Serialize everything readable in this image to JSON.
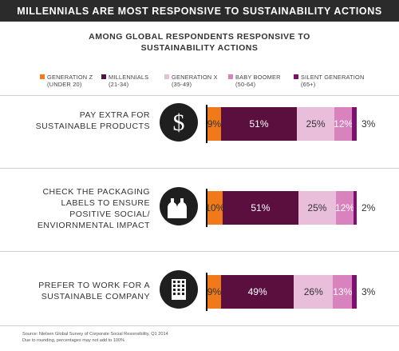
{
  "header": {
    "banner": "MILLENNIALS ARE MOST RESPONSIVE TO SUSTAINABILITY ACTIONS",
    "subtitle_line1": "AMONG GLOBAL RESPONDENTS RESPONSIVE TO",
    "subtitle_line2": "SUSTAINABILITY ACTIONS"
  },
  "legend": [
    {
      "name": "GENERATION Z",
      "range": "(UNDER 20)",
      "color": "#f07a1a"
    },
    {
      "name": "MILLENNIALS",
      "range": "(21-34)",
      "color": "#5b0f3f"
    },
    {
      "name": "GENERATION X",
      "range": "(35-49)",
      "color": "#e9bedb"
    },
    {
      "name": "BABY BOOMER",
      "range": "(50-64)",
      "color": "#d883be"
    },
    {
      "name": "SILENT GENERATION",
      "range": "(65+)",
      "color": "#7d0f6e"
    }
  ],
  "rows": [
    {
      "label_lines": [
        "PAY EXTRA FOR",
        "SUSTAINABLE PRODUCTS"
      ],
      "icon": "dollar-icon"
    },
    {
      "label_lines": [
        "CHECK THE PACKAGING",
        "LABELS TO ENSURE",
        "POSITIVE SOCIAL/",
        "ENVIORNMENTAL IMPACT"
      ],
      "icon": "bottles-icon"
    },
    {
      "label_lines": [
        "PREFER TO WORK FOR A",
        "SUSTAINABLE COMPANY"
      ],
      "icon": "building-icon"
    }
  ],
  "chart_data": {
    "type": "bar",
    "orientation": "horizontal",
    "stacked": true,
    "categories": [
      "PAY EXTRA FOR SUSTAINABLE PRODUCTS",
      "CHECK THE PACKAGING LABELS TO ENSURE POSITIVE SOCIAL/ ENVIORNMENTAL IMPACT",
      "PREFER TO WORK FOR A SUSTAINABLE COMPANY"
    ],
    "series": [
      {
        "name": "GENERATION Z (UNDER 20)",
        "values": [
          9,
          10,
          9
        ],
        "color": "#f07a1a"
      },
      {
        "name": "MILLENNIALS (21-34)",
        "values": [
          51,
          51,
          49
        ],
        "color": "#5b0f3f"
      },
      {
        "name": "GENERATION X (35-49)",
        "values": [
          25,
          25,
          26
        ],
        "color": "#e9bedb"
      },
      {
        "name": "BABY BOOMER (50-64)",
        "values": [
          12,
          12,
          13
        ],
        "color": "#d883be"
      },
      {
        "name": "SILENT GENERATION (65+)",
        "values": [
          3,
          2,
          3
        ],
        "color": "#7d0f6e"
      }
    ],
    "value_suffix": "%",
    "legend_position": "top",
    "grid": false
  },
  "footer": {
    "source": "Source: Nielsen Global Survey of Corporate Social Resonsibility, Q1 2014",
    "note": "Due to rounding, percentages may not add to 100%"
  }
}
